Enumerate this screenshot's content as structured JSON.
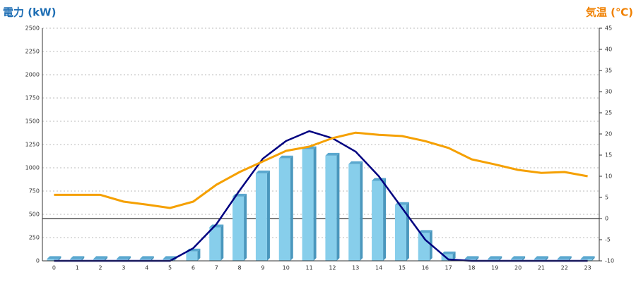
{
  "chart_data": {
    "type": "bar_line",
    "title_left": "電力 (kW)",
    "title_right": "気温 (℃)",
    "categories": [
      "0",
      "1",
      "2",
      "3",
      "4",
      "5",
      "6",
      "7",
      "8",
      "9",
      "10",
      "11",
      "12",
      "13",
      "14",
      "15",
      "16",
      "17",
      "18",
      "19",
      "20",
      "21",
      "22",
      "23"
    ],
    "series": [
      {
        "type": "bar",
        "color": "#87ceeb",
        "values": [
          20,
          20,
          20,
          20,
          20,
          20,
          100,
          360,
          690,
          940,
          1100,
          1200,
          1130,
          1040,
          860,
          600,
          300,
          70,
          20,
          20,
          20,
          20,
          20,
          20
        ]
      },
      {
        "type": "line",
        "color": "#000080",
        "values": [
          0,
          0,
          0,
          0,
          0,
          0,
          136,
          394,
          757,
          1098,
          1288,
          1394,
          1318,
          1174,
          909,
          568,
          227,
          15,
          0,
          0,
          0,
          0,
          0,
          0
        ]
      },
      {
        "type": "line",
        "axis": "y2",
        "color": "#f5a000",
        "values": [
          5.6,
          5.6,
          5.6,
          4,
          3.3,
          2.5,
          4,
          8,
          11,
          13.5,
          16,
          17,
          19,
          20.3,
          19.8,
          19.5,
          18.3,
          16.7,
          14,
          12.8,
          11.5,
          10.8,
          11,
          10
        ]
      }
    ],
    "ylim": [
      0,
      2500
    ],
    "yticks": [
      0,
      250,
      500,
      750,
      1000,
      1250,
      1500,
      1750,
      2000,
      2250,
      2500
    ],
    "y2lim": [
      -10,
      45
    ],
    "y2ticks": [
      -10,
      -5,
      0,
      5,
      10,
      15,
      20,
      25,
      30,
      35,
      40,
      45
    ],
    "grid": true
  }
}
